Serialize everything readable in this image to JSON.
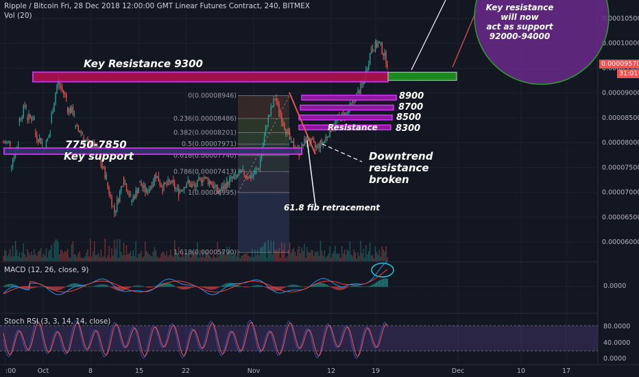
{
  "header": {
    "title": "Ripple / Bitcoin Fri, 28 Dec 2018 12:00:00 GMT Linear Futures Contract, 240, BITMEX",
    "vol_label": "Vol (20)",
    "macd_label": "MACD (12, 26, close, 9)",
    "stoch_label": "Stoch RSI (3, 3, 14, 14, close)"
  },
  "price_tags": {
    "current": "0.00009570",
    "countdown": "31:01"
  },
  "annotations": {
    "key_resistance": "Key Resistance 9300",
    "key_support_line1": "7750-7850",
    "key_support_line2": "Key support",
    "downtrend_line1": "Downtrend",
    "downtrend_line2": "resistance",
    "downtrend_line3": "broken",
    "fib_retracement": "61.8 fib retracement",
    "resistance_8300": "Resistance",
    "level_8900": "8900",
    "level_8700": "8700",
    "level_8500": "8500",
    "level_8300": "8300",
    "circle_line1": "Key resistance",
    "circle_line2": "will now",
    "circle_line3": "act as support",
    "circle_line4": "92000-94000"
  },
  "colors": {
    "background": "#131722",
    "up_candle": "#26a69a",
    "down_candle": "#ef5350",
    "fib_blue": "#4a6ad6",
    "highlight_magenta": "#d633ff",
    "support_green": "#1e8a1e",
    "circle_fill": "#6a2a8a",
    "macd_line": "#2196f3",
    "signal_line": "#f44336",
    "stoch_k": "#3f51b5",
    "stoch_d": "#ff5252"
  },
  "chart_data": {
    "type": "candlestick",
    "symbol": "XRPXBT",
    "timeframe": "240",
    "price_axis": {
      "min": 5.5e-06,
      "max": 1.06e-05,
      "ticks": [
        "0.00010500",
        "0.00010000",
        "0.00009500",
        "0.00009000",
        "0.00008500",
        "0.00008000",
        "0.00007500",
        "0.00007000",
        "0.00006500",
        "0.00006000"
      ]
    },
    "macd_axis": {
      "ticks": [
        "0.0000"
      ]
    },
    "stoch_axis": {
      "ticks": [
        "80.0000",
        "40.0000",
        "0.0000"
      ]
    },
    "time_axis": {
      "ticks": [
        ":00",
        "Oct",
        "8",
        "15",
        "22",
        "Nov",
        "12",
        "19",
        "Dec",
        "10",
        "17"
      ]
    },
    "price_path": [
      [
        8e-05,
        8e-05
      ],
      [
        7.5e-05,
        8e-05
      ],
      [
        8.4e-05,
        8.8e-05
      ],
      [
        8.5e-05,
        8.5e-05
      ],
      [
        8.2e-05,
        8e-05
      ],
      [
        7.8e-05,
        8.2e-05
      ],
      [
        8.4e-05,
        9.3e-05
      ],
      [
        9.2e-05,
        8.9e-05
      ],
      [
        8.7e-05,
        8.6e-05
      ],
      [
        8.3e-05,
        8.2e-05
      ],
      [
        8.1e-05,
        7.9e-05
      ],
      [
        8e-05,
        7.8e-05
      ],
      [
        7.7e-05,
        7.3e-05
      ],
      [
        7.2e-05,
        6.6e-05
      ],
      [
        6.6e-05,
        7.2e-05
      ],
      [
        7.3e-05,
        6.9e-05
      ],
      [
        6.8e-05,
        7.1e-05
      ],
      [
        7.2e-05,
        7e-05
      ],
      [
        7e-05,
        7.3e-05
      ],
      [
        7.4e-05,
        7.1e-05
      ],
      [
        7.1e-05,
        7.2e-05
      ],
      [
        7.2e-05,
        7e-05
      ],
      [
        7e-05,
        7.2e-05
      ],
      [
        7.2e-05,
        7.1e-05
      ],
      [
        7.1e-05,
        7.3e-05
      ],
      [
        7.3e-05,
        7.2e-05
      ],
      [
        7.2e-05,
        7e-05
      ],
      [
        7e-05,
        7.2e-05
      ],
      [
        7.2e-05,
        7.3e-05
      ],
      [
        7.3e-05,
        7.4e-05
      ],
      [
        7.4e-05,
        7.3e-05
      ],
      [
        7.3e-05,
        7.5e-05
      ],
      [
        7.5e-05,
        8.4e-05
      ],
      [
        8.4e-05,
        8.9e-05
      ],
      [
        8.9e-05,
        8.4e-05
      ],
      [
        8.4e-05,
        8e-05
      ],
      [
        8e-05,
        7.8e-05
      ],
      [
        7.8e-05,
        8.1e-05
      ],
      [
        8.1e-05,
        7.9e-05
      ],
      [
        7.9e-05,
        8e-05
      ],
      [
        8e-05,
        8.3e-05
      ],
      [
        8.3e-05,
        8.5e-05
      ],
      [
        8.5e-05,
        8.6e-05
      ],
      [
        8.6e-05,
        8.9e-05
      ],
      [
        8.9e-05,
        9.2e-05
      ],
      [
        9.2e-05,
        9.9e-05
      ],
      [
        9.9e-05,
        0.0001
      ],
      [
        0.0001,
        9.6e-05
      ]
    ],
    "fibonacci": [
      {
        "level": "0",
        "price": 8.946e-05
      },
      {
        "level": "0.236",
        "price": 8.486e-05
      },
      {
        "level": "0.382",
        "price": 8.201e-05
      },
      {
        "level": "0.5",
        "price": 7.971e-05
      },
      {
        "level": "0.618",
        "price": 7.74e-05
      },
      {
        "level": "0.786",
        "price": 7.413e-05
      },
      {
        "level": "1",
        "price": 6.995e-05
      },
      {
        "level": "1.618",
        "price": 5.79e-05
      }
    ],
    "key_levels": {
      "resistance": 9.3e-05,
      "support_low": 7.75e-05,
      "support_high": 7.85e-05
    }
  }
}
